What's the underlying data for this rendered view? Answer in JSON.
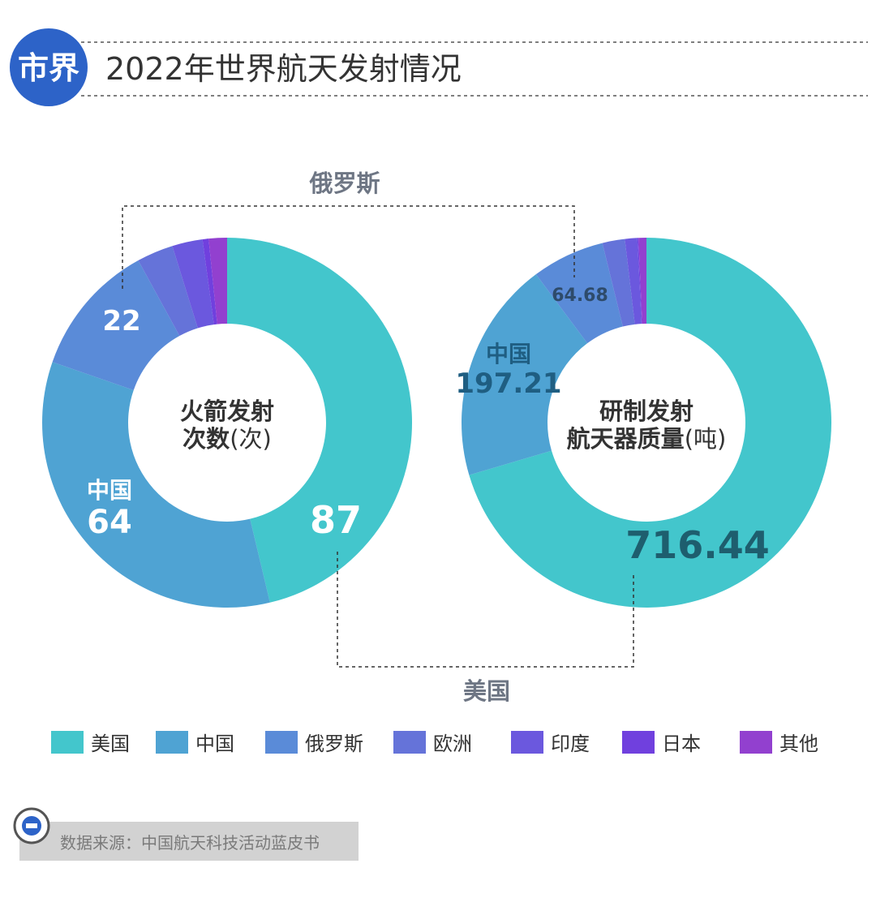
{
  "header": {
    "logo_text": "市界",
    "title": "2022年世界航天发射情况"
  },
  "callouts": {
    "top": "俄罗斯",
    "bottom": "美国"
  },
  "colors": {
    "美国": "#43C6CC",
    "中国": "#4FA3D3",
    "俄罗斯": "#5A8BD8",
    "欧洲": "#6573D9",
    "印度": "#6B58DE",
    "日本": "#7040DE",
    "其他": "#9240CF",
    "logo": "#2D63C8",
    "text_dark": "#333333",
    "text_gray": "#6E7684"
  },
  "chart_data": [
    {
      "type": "pie",
      "center_label_line1": "火箭发射",
      "center_label_line2_bold": "次数",
      "center_label_line2_unit": "(次)",
      "categories": [
        "美国",
        "中国",
        "俄罗斯",
        "欧洲",
        "印度",
        "日本",
        "其他"
      ],
      "values": [
        87,
        64,
        22,
        6,
        5,
        1,
        3
      ],
      "data_labels": {
        "美国": "87",
        "中国_name": "中国",
        "中国": "64",
        "俄罗斯": "22"
      }
    },
    {
      "type": "pie",
      "center_label_line1": "研制发射",
      "center_label_line2_bold": "航天器质量",
      "center_label_line2_unit": "(吨)",
      "categories": [
        "美国",
        "中国",
        "俄罗斯",
        "欧洲",
        "印度",
        "日本",
        "其他"
      ],
      "values": [
        716.44,
        197.21,
        64.68,
        20,
        11,
        1,
        7
      ],
      "data_labels": {
        "美国": "716.44",
        "中国_name": "中国",
        "中国": "197.21",
        "俄罗斯": "64.68"
      }
    }
  ],
  "legend": [
    {
      "name": "美国",
      "color": "#43C6CC"
    },
    {
      "name": "中国",
      "color": "#4FA3D3"
    },
    {
      "name": "俄罗斯",
      "color": "#5A8BD8"
    },
    {
      "name": "欧洲",
      "color": "#6573D9"
    },
    {
      "name": "印度",
      "color": "#6B58DE"
    },
    {
      "name": "日本",
      "color": "#7040DE"
    },
    {
      "name": "其他",
      "color": "#9240CF"
    }
  ],
  "source": {
    "icon": "minus-circle-icon",
    "text": "数据来源：中国航天科技活动蓝皮书"
  }
}
